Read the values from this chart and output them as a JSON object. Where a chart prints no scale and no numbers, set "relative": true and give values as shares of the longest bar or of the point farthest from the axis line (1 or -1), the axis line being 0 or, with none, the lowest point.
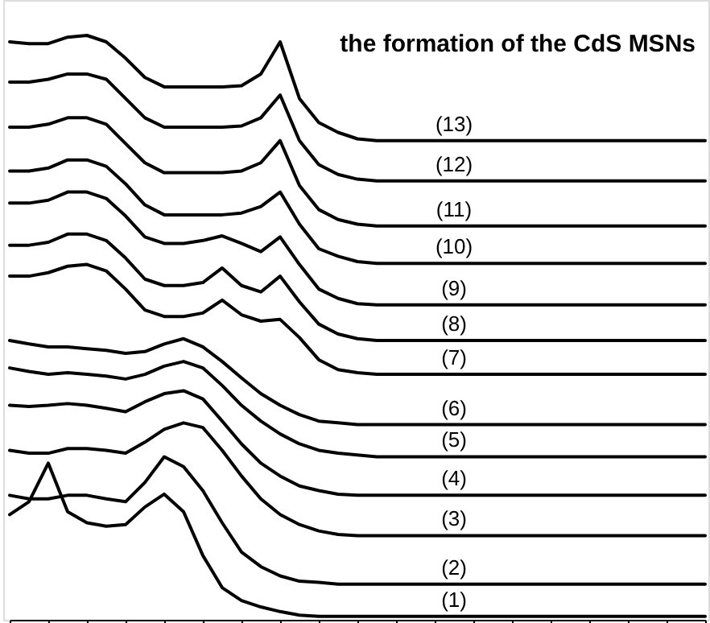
{
  "chart_data": {
    "type": "line",
    "title": "the formation of the CdS MSNs",
    "relative": true,
    "tick_labels": false,
    "marker": "none",
    "line_style": "solid",
    "categories": [
      null,
      null,
      null,
      null,
      null,
      null,
      null,
      null,
      null,
      null,
      null,
      null,
      null,
      null,
      null,
      null,
      null,
      null,
      null,
      null,
      null,
      null,
      null,
      null,
      null,
      null,
      null,
      null,
      null,
      null,
      null,
      null,
      null,
      null,
      null,
      null,
      null
    ],
    "series": [
      {
        "name": "(13)",
        "color": "#000000",
        "values": [
          0.989,
          0.986,
          0.986,
          0.997,
          1,
          0.989,
          0.961,
          0.928,
          0.912,
          0.912,
          0.912,
          0.912,
          0.914,
          0.934,
          0.989,
          0.892,
          0.851,
          0.834,
          0.823,
          0.82,
          0.82,
          0.82,
          0.82,
          0.82,
          0.82,
          0.82,
          0.82,
          0.82,
          0.82,
          0.82,
          0.82,
          0.82,
          0.82,
          0.82,
          0.82,
          0.82,
          0.82
        ]
      },
      {
        "name": "(12)",
        "color": "#000000",
        "values": [
          0.92,
          0.92,
          0.925,
          0.934,
          0.934,
          0.925,
          0.892,
          0.859,
          0.843,
          0.843,
          0.843,
          0.843,
          0.845,
          0.859,
          0.898,
          0.82,
          0.779,
          0.762,
          0.754,
          0.751,
          0.751,
          0.751,
          0.751,
          0.751,
          0.751,
          0.751,
          0.751,
          0.751,
          0.751,
          0.751,
          0.751,
          0.751,
          0.751,
          0.751,
          0.751,
          0.751,
          0.751
        ]
      },
      {
        "name": "(11)",
        "color": "#000000",
        "values": [
          0.843,
          0.843,
          0.848,
          0.859,
          0.859,
          0.848,
          0.815,
          0.782,
          0.765,
          0.765,
          0.765,
          0.765,
          0.768,
          0.782,
          0.82,
          0.743,
          0.702,
          0.685,
          0.677,
          0.674,
          0.674,
          0.674,
          0.674,
          0.674,
          0.674,
          0.674,
          0.674,
          0.674,
          0.674,
          0.674,
          0.674,
          0.674,
          0.674,
          0.674,
          0.674,
          0.674,
          0.674
        ]
      },
      {
        "name": "(10)",
        "color": "#000000",
        "values": [
          0.768,
          0.768,
          0.773,
          0.787,
          0.787,
          0.776,
          0.746,
          0.71,
          0.693,
          0.693,
          0.693,
          0.693,
          0.696,
          0.707,
          0.732,
          0.677,
          0.635,
          0.622,
          0.613,
          0.61,
          0.61,
          0.61,
          0.61,
          0.61,
          0.61,
          0.61,
          0.61,
          0.61,
          0.61,
          0.61,
          0.61,
          0.61,
          0.61,
          0.61,
          0.61,
          0.61,
          0.61
        ]
      },
      {
        "name": "(9)",
        "color": "#000000",
        "values": [
          0.713,
          0.713,
          0.718,
          0.732,
          0.732,
          0.721,
          0.691,
          0.655,
          0.644,
          0.644,
          0.649,
          0.657,
          0.644,
          0.63,
          0.655,
          0.608,
          0.566,
          0.55,
          0.541,
          0.539,
          0.539,
          0.539,
          0.539,
          0.539,
          0.539,
          0.539,
          0.539,
          0.539,
          0.539,
          0.539,
          0.539,
          0.539,
          0.539,
          0.539,
          0.539,
          0.539,
          0.539
        ]
      },
      {
        "name": "(8)",
        "color": "#000000",
        "values": [
          0.641,
          0.641,
          0.646,
          0.66,
          0.66,
          0.649,
          0.619,
          0.583,
          0.572,
          0.572,
          0.577,
          0.602,
          0.572,
          0.561,
          0.588,
          0.544,
          0.506,
          0.489,
          0.481,
          0.478,
          0.478,
          0.478,
          0.478,
          0.478,
          0.478,
          0.478,
          0.478,
          0.478,
          0.478,
          0.478,
          0.478,
          0.478,
          0.478,
          0.478,
          0.478,
          0.478,
          0.478
        ]
      },
      {
        "name": "(7)",
        "color": "#000000",
        "values": [
          0.588,
          0.588,
          0.594,
          0.605,
          0.608,
          0.597,
          0.566,
          0.53,
          0.519,
          0.519,
          0.525,
          0.547,
          0.522,
          0.511,
          0.514,
          0.483,
          0.445,
          0.428,
          0.423,
          0.42,
          0.42,
          0.42,
          0.42,
          0.42,
          0.42,
          0.42,
          0.42,
          0.42,
          0.42,
          0.42,
          0.42,
          0.42,
          0.42,
          0.42,
          0.42,
          0.42,
          0.42
        ]
      },
      {
        "name": "(6)",
        "color": "#000000",
        "values": [
          0.478,
          0.472,
          0.467,
          0.467,
          0.464,
          0.461,
          0.456,
          0.459,
          0.472,
          0.481,
          0.467,
          0.442,
          0.414,
          0.387,
          0.367,
          0.351,
          0.34,
          0.337,
          0.334,
          0.334,
          0.334,
          0.334,
          0.334,
          0.334,
          0.334,
          0.334,
          0.334,
          0.334,
          0.334,
          0.334,
          0.334,
          0.334,
          0.334,
          0.334,
          0.334,
          0.334,
          0.334
        ]
      },
      {
        "name": "(5)",
        "color": "#000000",
        "values": [
          0.431,
          0.425,
          0.42,
          0.423,
          0.42,
          0.417,
          0.412,
          0.42,
          0.434,
          0.442,
          0.431,
          0.401,
          0.367,
          0.34,
          0.318,
          0.301,
          0.29,
          0.285,
          0.282,
          0.279,
          0.279,
          0.279,
          0.279,
          0.279,
          0.279,
          0.279,
          0.279,
          0.279,
          0.279,
          0.279,
          0.279,
          0.279,
          0.279,
          0.279,
          0.279,
          0.279,
          0.279
        ]
      },
      {
        "name": "(4)",
        "color": "#000000",
        "values": [
          0.367,
          0.365,
          0.367,
          0.37,
          0.367,
          0.362,
          0.356,
          0.373,
          0.387,
          0.392,
          0.378,
          0.34,
          0.301,
          0.268,
          0.246,
          0.229,
          0.221,
          0.215,
          0.213,
          0.213,
          0.213,
          0.213,
          0.213,
          0.213,
          0.213,
          0.213,
          0.213,
          0.213,
          0.213,
          0.213,
          0.213,
          0.213,
          0.213,
          0.213,
          0.213,
          0.213,
          0.213
        ]
      },
      {
        "name": "(3)",
        "color": "#000000",
        "values": [
          0.29,
          0.285,
          0.285,
          0.293,
          0.293,
          0.29,
          0.285,
          0.304,
          0.326,
          0.337,
          0.329,
          0.29,
          0.246,
          0.207,
          0.18,
          0.163,
          0.152,
          0.146,
          0.144,
          0.144,
          0.144,
          0.144,
          0.144,
          0.144,
          0.144,
          0.144,
          0.144,
          0.144,
          0.144,
          0.144,
          0.144,
          0.144,
          0.144,
          0.144,
          0.144,
          0.144,
          0.144
        ]
      },
      {
        "name": "(2)",
        "color": "#000000",
        "values": [
          0.213,
          0.207,
          0.207,
          0.213,
          0.213,
          0.207,
          0.202,
          0.235,
          0.279,
          0.262,
          0.221,
          0.166,
          0.116,
          0.091,
          0.075,
          0.066,
          0.064,
          0.061,
          0.061,
          0.061,
          0.061,
          0.061,
          0.061,
          0.061,
          0.061,
          0.061,
          0.061,
          0.061,
          0.061,
          0.061,
          0.061,
          0.061,
          0.061,
          0.061,
          0.061,
          0.061,
          0.061
        ]
      },
      {
        "name": "(1)",
        "color": "#000000",
        "values": [
          0.18,
          0.202,
          0.268,
          0.185,
          0.166,
          0.16,
          0.163,
          0.193,
          0.215,
          0.185,
          0.11,
          0.055,
          0.033,
          0.022,
          0.014,
          0.008,
          0.006,
          0.006,
          0.006,
          0.006,
          0.006,
          0.006,
          0.006,
          0.006,
          0.006,
          0.006,
          0.006,
          0.006,
          0.006,
          0.006,
          0.006,
          0.006,
          0.006,
          0.006,
          0.006,
          0.006,
          0.006
        ]
      }
    ]
  }
}
